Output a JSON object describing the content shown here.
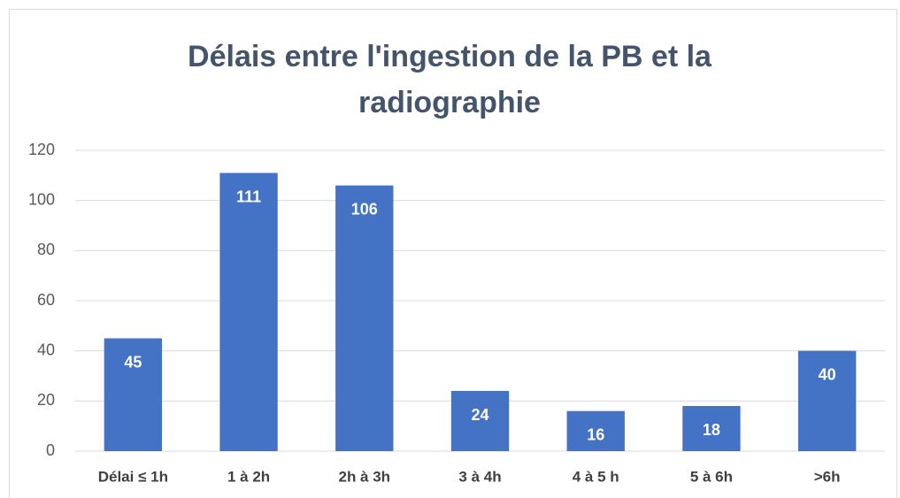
{
  "chart_data": {
    "type": "bar",
    "title": "Délais entre l'ingestion de la PB et la radiographie",
    "categories": [
      "Délai ≤ 1h",
      "1 à 2h",
      "2h à 3h",
      "3 à 4h",
      "4 à 5 h",
      "5 à 6h",
      ">6h"
    ],
    "values": [
      45,
      111,
      106,
      24,
      16,
      18,
      40
    ],
    "color": "#4472c4",
    "ylim": [
      0,
      120
    ],
    "yticks": [
      0,
      20,
      40,
      60,
      80,
      100,
      120
    ],
    "grid": true
  }
}
